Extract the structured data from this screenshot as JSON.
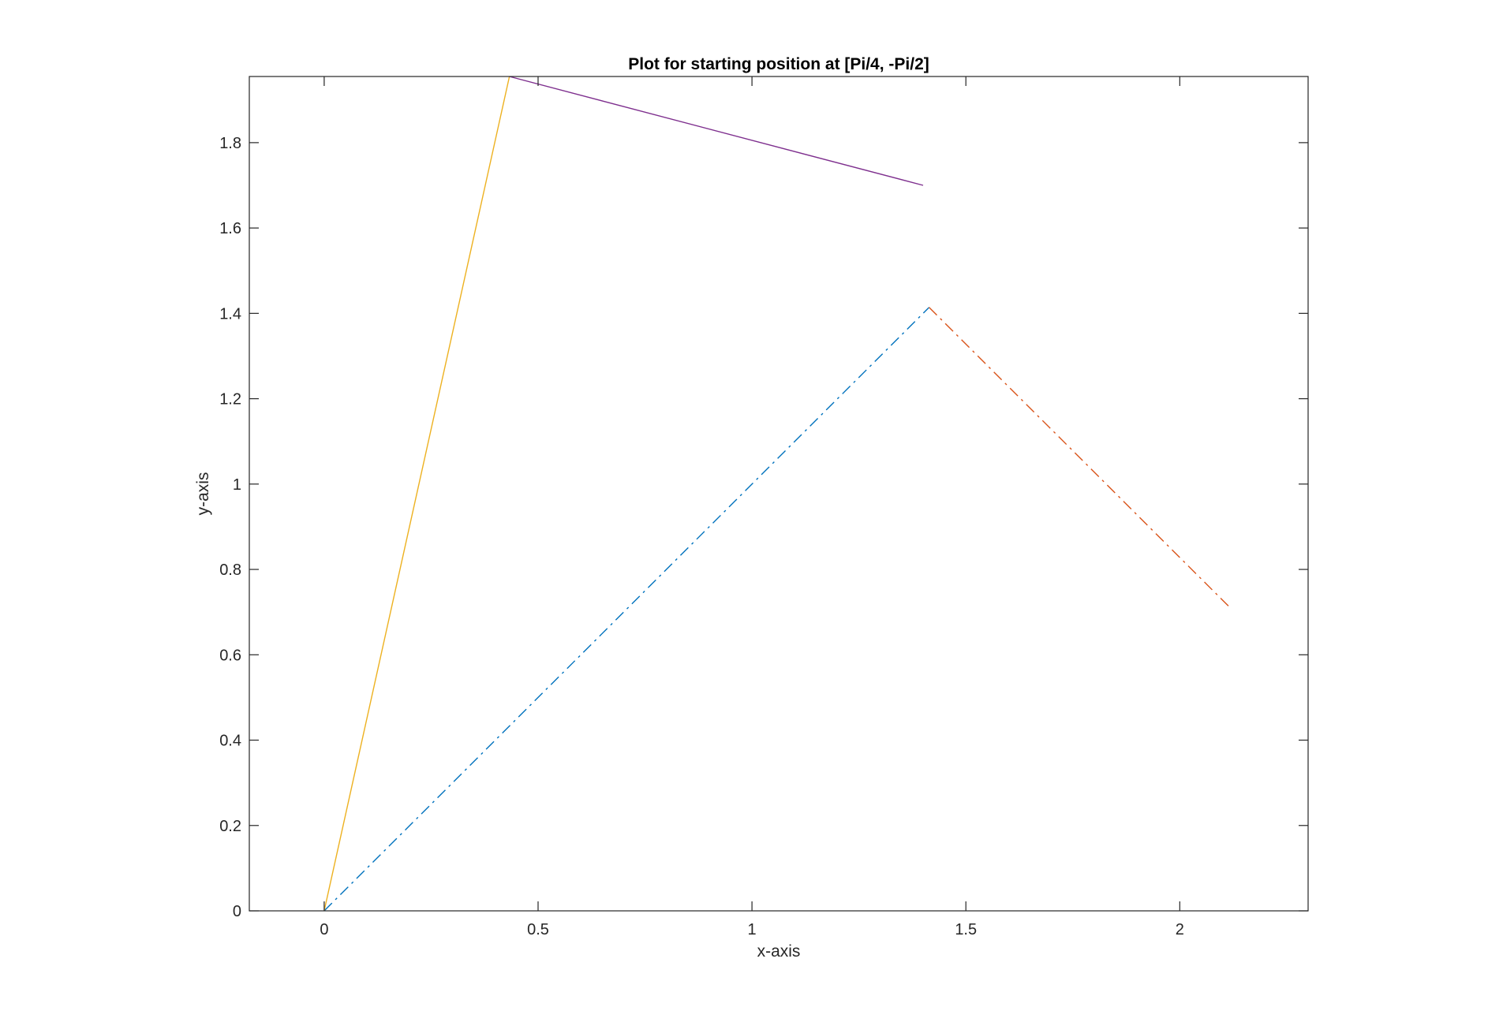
{
  "chart_data": {
    "type": "line",
    "title": "Plot for starting position at [Pi/4, -Pi/2]",
    "xlabel": "x-axis",
    "ylabel": "y-axis",
    "xlim": [
      -0.175,
      2.3
    ],
    "ylim": [
      0,
      1.955
    ],
    "xticks": [
      0,
      0.5,
      1,
      1.5,
      2
    ],
    "xtick_labels": [
      "0",
      "0.5",
      "1",
      "1.5",
      "2"
    ],
    "yticks": [
      0,
      0.2,
      0.4,
      0.6,
      0.8,
      1,
      1.2,
      1.4,
      1.6,
      1.8
    ],
    "ytick_labels": [
      "0",
      "0.2",
      "0.4",
      "0.6",
      "0.8",
      "1",
      "1.2",
      "1.4",
      "1.6",
      "1.8"
    ],
    "grid": false,
    "box": true,
    "series": [
      {
        "x": [
          0,
          1.414
        ],
        "y": [
          0,
          1.414
        ],
        "color": "#0072BD",
        "style": "dashdot"
      },
      {
        "x": [
          1.414,
          2.121
        ],
        "y": [
          1.414,
          0.707
        ],
        "color": "#D95319",
        "style": "dashdot"
      },
      {
        "x": [
          0,
          0.433
        ],
        "y": [
          0,
          1.955
        ],
        "color": "#EDB120",
        "style": "solid"
      },
      {
        "x": [
          0.433,
          1.4
        ],
        "y": [
          1.955,
          1.7
        ],
        "color": "#7E2F8E",
        "style": "solid"
      }
    ]
  }
}
